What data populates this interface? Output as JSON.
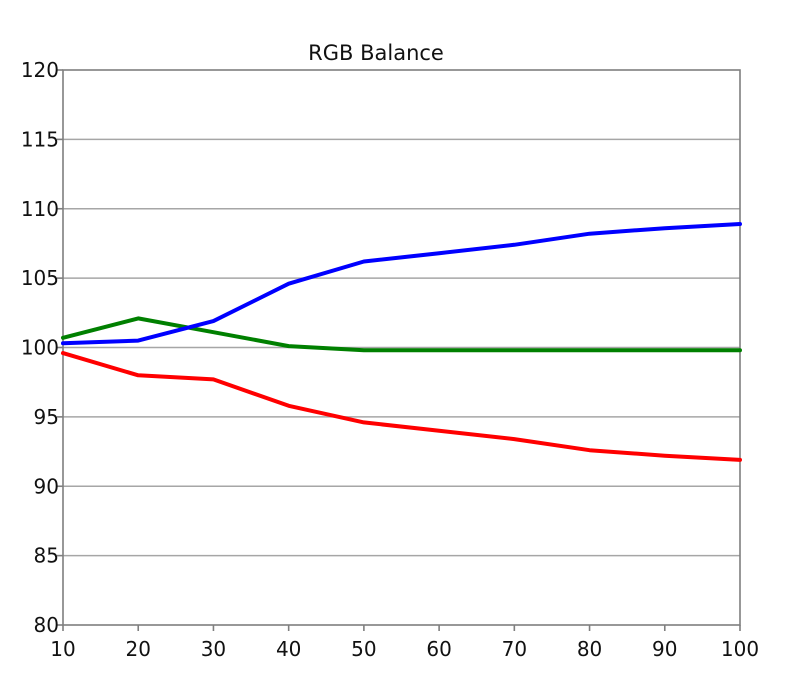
{
  "chart_data": {
    "type": "line",
    "title": "RGB Balance",
    "xlabel": "",
    "ylabel": "",
    "x": [
      10,
      20,
      30,
      40,
      50,
      60,
      70,
      80,
      90,
      100
    ],
    "xticks": [
      "10",
      "20",
      "30",
      "40",
      "50",
      "60",
      "70",
      "80",
      "90",
      "100"
    ],
    "yticks": [
      "80",
      "85",
      "90",
      "95",
      "100",
      "105",
      "110",
      "115",
      "120"
    ],
    "xlim": [
      10,
      100
    ],
    "ylim": [
      80,
      120
    ],
    "grid": "horizontal",
    "legend": "none",
    "series": [
      {
        "color": "#ff0000",
        "values": [
          99.6,
          98.0,
          97.7,
          95.8,
          94.6,
          94.0,
          93.4,
          92.6,
          92.2,
          91.9
        ]
      },
      {
        "color": "#008000",
        "values": [
          100.7,
          102.1,
          101.1,
          100.1,
          99.8,
          99.8,
          99.8,
          99.8,
          99.8,
          99.8
        ]
      },
      {
        "color": "#0000ff",
        "values": [
          100.3,
          100.5,
          101.9,
          104.6,
          106.2,
          106.8,
          107.4,
          108.2,
          108.6,
          108.9
        ]
      }
    ]
  }
}
